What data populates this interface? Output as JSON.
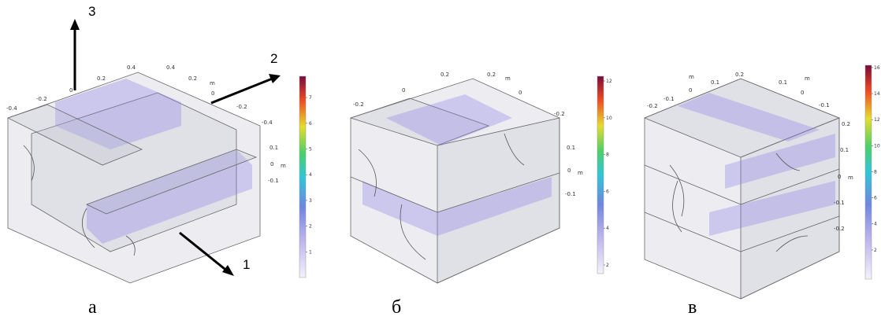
{
  "axis_labels": [
    "1",
    "2",
    "3"
  ],
  "panels": [
    {
      "label": "а",
      "colorbar_ticks": [
        1,
        2,
        3,
        4,
        5,
        6,
        7
      ],
      "ticks": [
        "-0.4",
        "-0.2",
        "0",
        "0.2",
        "0.4",
        "0.4",
        "0.2",
        "m",
        "0",
        "-0.2",
        "-0.4",
        "0.1",
        "0",
        "m",
        "-0.1"
      ]
    },
    {
      "label": "б",
      "colorbar_ticks": [
        2,
        4,
        6,
        8,
        10,
        12
      ],
      "ticks": [
        "-0.2",
        "0",
        "0.2",
        "0.2",
        "m",
        "0",
        "-0.2",
        "0.1",
        "0",
        "m",
        "-0.1"
      ]
    },
    {
      "label": "в",
      "colorbar_ticks": [
        2,
        4,
        6,
        8,
        10,
        12,
        14,
        16
      ],
      "ticks": [
        "-0.2",
        "-0.1",
        "0",
        "0.1",
        "0.2",
        "m",
        "0.1",
        "m",
        "0",
        "-0.1",
        "0.2",
        "0.1",
        "0",
        "m",
        "-0.1",
        "-0.2"
      ]
    }
  ]
}
